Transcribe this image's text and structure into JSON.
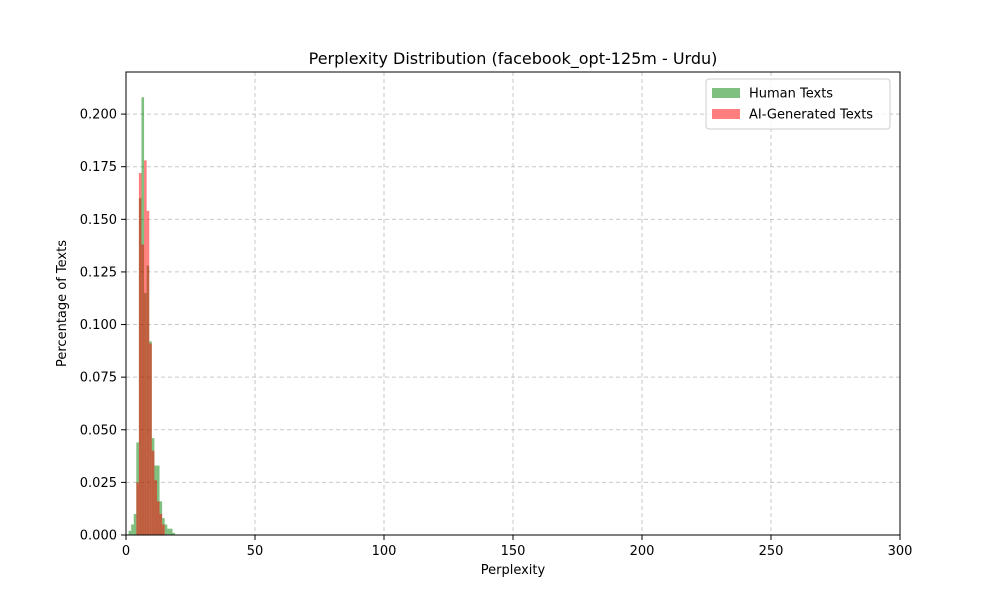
{
  "chart_data": {
    "type": "histogram",
    "title": "Perplexity Distribution (facebook_opt-125m - Urdu)",
    "xlabel": "Perplexity",
    "ylabel": "Percentage of Texts",
    "xlim": [
      0,
      300
    ],
    "ylim": [
      0,
      0.22
    ],
    "xticks": [
      0,
      50,
      100,
      150,
      200,
      250,
      300
    ],
    "xtick_labels": [
      "0",
      "50",
      "100",
      "150",
      "200",
      "250",
      "300"
    ],
    "yticks": [
      0.0,
      0.025,
      0.05,
      0.075,
      0.1,
      0.125,
      0.15,
      0.175,
      0.2
    ],
    "ytick_labels": [
      "0.000",
      "0.025",
      "0.050",
      "0.075",
      "0.100",
      "0.125",
      "0.150",
      "0.175",
      "0.200"
    ],
    "grid": true,
    "legend_position": "upper-right",
    "series": [
      {
        "name": "Human Texts",
        "color": "#008000",
        "alpha": 0.5,
        "bins": [
          {
            "x0": 1.0,
            "x1": 2.0,
            "value": 0.002
          },
          {
            "x0": 2.0,
            "x1": 3.0,
            "value": 0.005
          },
          {
            "x0": 3.0,
            "x1": 4.0,
            "value": 0.01
          },
          {
            "x0": 4.0,
            "x1": 5.0,
            "value": 0.044
          },
          {
            "x0": 5.0,
            "x1": 6.0,
            "value": 0.16
          },
          {
            "x0": 6.0,
            "x1": 7.0,
            "value": 0.208
          },
          {
            "x0": 7.0,
            "x1": 8.0,
            "value": 0.115
          },
          {
            "x0": 8.0,
            "x1": 9.0,
            "value": 0.128
          },
          {
            "x0": 9.0,
            "x1": 10.0,
            "value": 0.092
          },
          {
            "x0": 10.0,
            "x1": 11.0,
            "value": 0.046
          },
          {
            "x0": 11.0,
            "x1": 12.0,
            "value": 0.033
          },
          {
            "x0": 12.0,
            "x1": 13.0,
            "value": 0.033
          },
          {
            "x0": 13.0,
            "x1": 14.0,
            "value": 0.016
          },
          {
            "x0": 14.0,
            "x1": 15.0,
            "value": 0.008
          },
          {
            "x0": 15.0,
            "x1": 16.0,
            "value": 0.005
          },
          {
            "x0": 16.0,
            "x1": 17.0,
            "value": 0.003
          },
          {
            "x0": 17.0,
            "x1": 18.0,
            "value": 0.003
          },
          {
            "x0": 18.0,
            "x1": 19.0,
            "value": 0.001
          }
        ]
      },
      {
        "name": "AI-Generated Texts",
        "color": "#ff0000",
        "alpha": 0.5,
        "bins": [
          {
            "x0": 4.0,
            "x1": 5.0,
            "value": 0.025
          },
          {
            "x0": 5.0,
            "x1": 6.0,
            "value": 0.172
          },
          {
            "x0": 6.0,
            "x1": 7.0,
            "value": 0.138
          },
          {
            "x0": 7.0,
            "x1": 8.0,
            "value": 0.178
          },
          {
            "x0": 8.0,
            "x1": 9.0,
            "value": 0.154
          },
          {
            "x0": 9.0,
            "x1": 10.0,
            "value": 0.091
          },
          {
            "x0": 10.0,
            "x1": 11.0,
            "value": 0.04
          },
          {
            "x0": 11.0,
            "x1": 12.0,
            "value": 0.026
          },
          {
            "x0": 12.0,
            "x1": 13.0,
            "value": 0.016
          },
          {
            "x0": 13.0,
            "x1": 14.0,
            "value": 0.01
          },
          {
            "x0": 14.0,
            "x1": 15.0,
            "value": 0.005
          }
        ]
      }
    ]
  }
}
